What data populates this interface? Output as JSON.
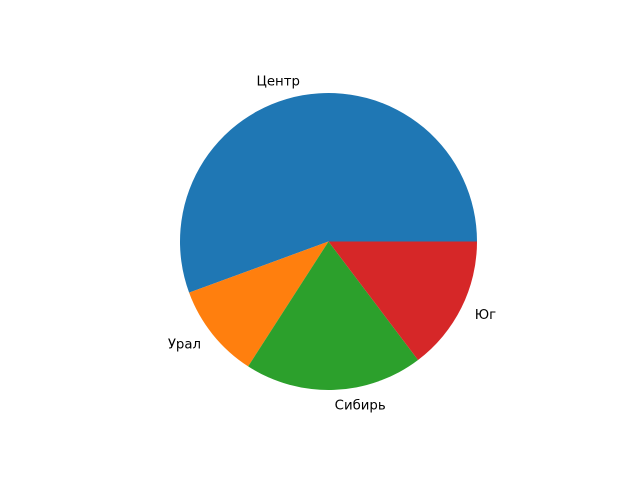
{
  "figure": {
    "background_color": "#ffffff",
    "text_color": "#000000"
  },
  "chart_data": {
    "type": "pie",
    "title": "",
    "legend": "none",
    "start_angle_deg": 0,
    "direction": "counterclockwise",
    "label_distance": 1.1,
    "units": "percent",
    "slices": [
      {
        "id": "centr",
        "label": "Центр",
        "value": 55.6,
        "color": "#1f77b4"
      },
      {
        "id": "ural",
        "label": "Урал",
        "value": 10.3,
        "color": "#ff7f0e"
      },
      {
        "id": "sibir",
        "label": "Сибирь",
        "value": 19.4,
        "color": "#2ca02c"
      },
      {
        "id": "yug",
        "label": "Юг",
        "value": 14.7,
        "color": "#d62728"
      }
    ]
  }
}
